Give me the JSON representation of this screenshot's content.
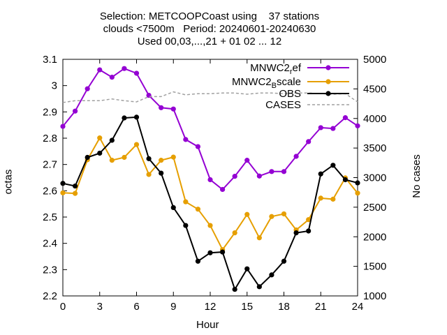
{
  "chart_data": {
    "type": "line",
    "title_lines": [
      "Selection: METCOOPCoast using    37 stations",
      "clouds <7500m   Period: 20240601-20240630",
      "Used 00,03,...,21 + 01 02 ... 12"
    ],
    "xlabel": "Hour",
    "ylabel": "octas",
    "y2label": "No cases",
    "xlim": [
      0,
      24
    ],
    "ylim": [
      2.2,
      3.1
    ],
    "y2lim": [
      1000,
      5000
    ],
    "xticks": [
      0,
      3,
      6,
      9,
      12,
      15,
      18,
      21,
      24
    ],
    "yticks": [
      "2.2",
      "2.3",
      "2.4",
      "2.5",
      "2.6",
      "2.7",
      "2.8",
      "2.9",
      "3",
      "3.1"
    ],
    "y2ticks": [
      1000,
      1500,
      2000,
      2500,
      3000,
      3500,
      4000,
      4500,
      5000
    ],
    "grid": false,
    "legend_position": "top-right",
    "x": [
      0,
      1,
      2,
      3,
      4,
      5,
      6,
      7,
      8,
      9,
      10,
      11,
      12,
      13,
      14,
      15,
      16,
      17,
      18,
      19,
      20,
      21,
      22,
      23,
      24
    ],
    "series": [
      {
        "name": "MNWC2",
        "name_sub": "r",
        "name_tail": "ef",
        "color": "#9400d3",
        "marker": "circle",
        "axis": "y",
        "values": [
          2.845,
          2.903,
          2.988,
          3.06,
          3.032,
          3.065,
          3.047,
          2.963,
          2.916,
          2.911,
          2.795,
          2.768,
          2.642,
          2.605,
          2.655,
          2.716,
          2.656,
          2.673,
          2.673,
          2.731,
          2.787,
          2.84,
          2.837,
          2.878,
          2.847
        ]
      },
      {
        "name": "MNWC2",
        "name_sub": "B",
        "name_tail": "scale",
        "color": "#e69f00",
        "marker": "circle",
        "axis": "y",
        "values": [
          2.592,
          2.59,
          2.718,
          2.801,
          2.716,
          2.727,
          2.776,
          2.662,
          2.716,
          2.728,
          2.558,
          2.53,
          2.468,
          2.376,
          2.44,
          2.51,
          2.421,
          2.502,
          2.512,
          2.451,
          2.49,
          2.572,
          2.568,
          2.649,
          2.591
        ]
      },
      {
        "name": "OBS",
        "color": "#000000",
        "marker": "circle",
        "axis": "y",
        "values": [
          2.628,
          2.618,
          2.727,
          2.743,
          2.792,
          2.877,
          2.88,
          2.722,
          2.667,
          2.536,
          2.468,
          2.332,
          2.364,
          2.367,
          2.225,
          2.303,
          2.235,
          2.28,
          2.332,
          2.44,
          2.447,
          2.664,
          2.697,
          2.642,
          2.63
        ]
      },
      {
        "name": "CASES",
        "color": "#a0a0a0",
        "marker": "none",
        "dash": true,
        "axis": "y2",
        "values": [
          4270,
          4300,
          4300,
          4300,
          4330,
          4300,
          4280,
          4370,
          4370,
          4450,
          4400,
          4420,
          4420,
          4430,
          4430,
          4410,
          4430,
          4430,
          4420,
          4430,
          4430,
          4420,
          4410,
          4420,
          4280
        ]
      }
    ]
  }
}
